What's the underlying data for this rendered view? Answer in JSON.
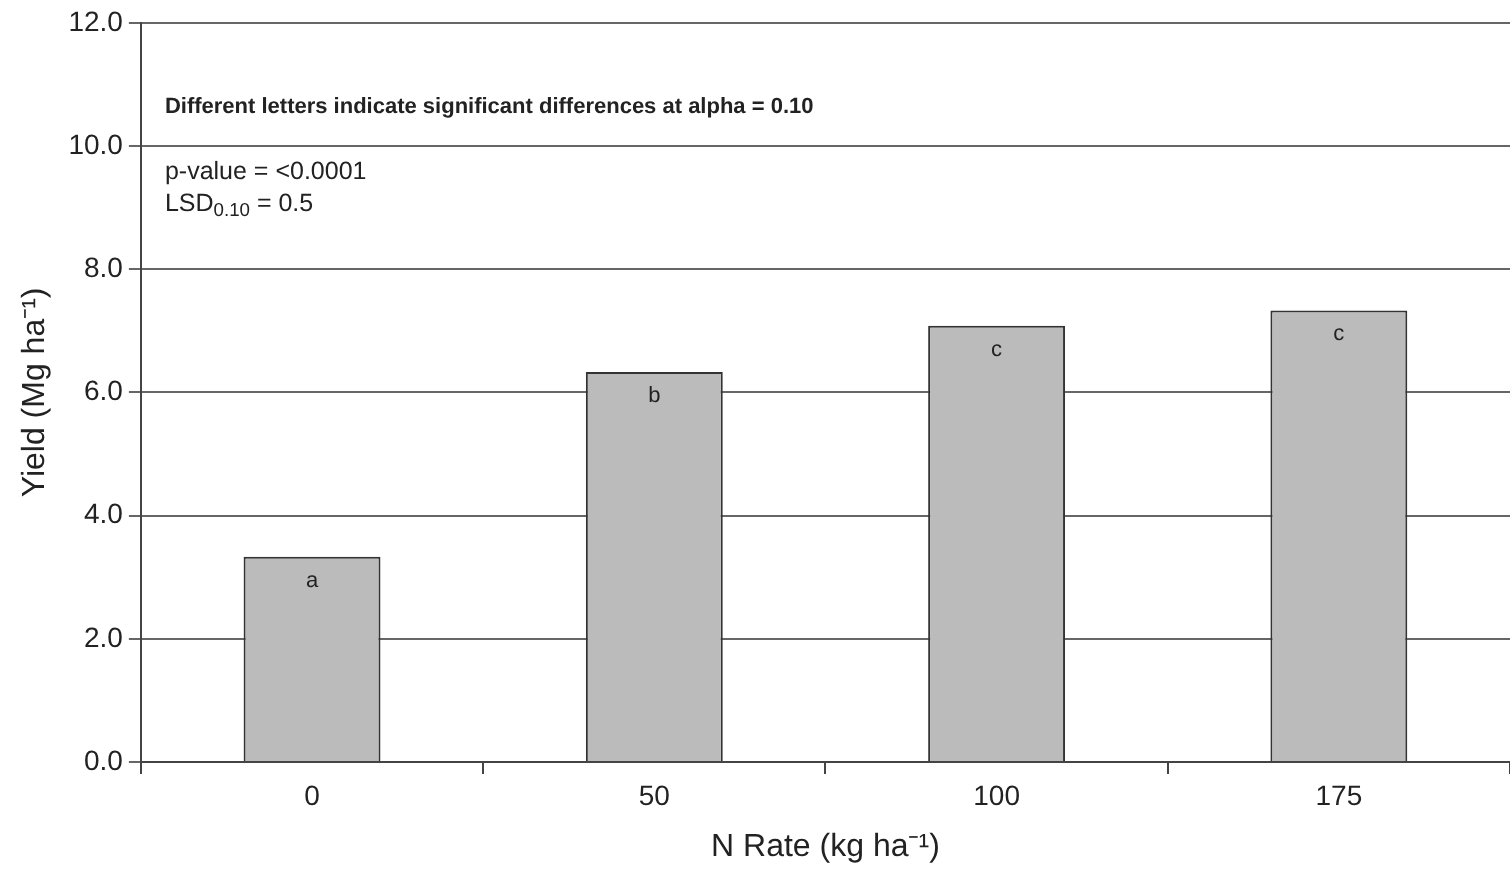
{
  "chart_data": {
    "type": "bar",
    "xlabel": "N Rate (kg ha⁻¹)",
    "ylabel": "Yield (Mg ha⁻¹)",
    "categories": [
      "0",
      "50",
      "100",
      "175"
    ],
    "values": [
      3.33,
      6.33,
      7.08,
      7.33
    ],
    "color": "#bbbbbb",
    "ylim": [
      0,
      12
    ],
    "yticks": [
      {
        "value": 0,
        "label": "0.0"
      },
      {
        "value": 2,
        "label": "2.0"
      },
      {
        "value": 4,
        "label": "4.0"
      },
      {
        "value": 6,
        "label": "6.0"
      },
      {
        "value": 8,
        "label": "8.0"
      },
      {
        "value": 10,
        "label": "10.0"
      },
      {
        "value": 12,
        "label": "12.0"
      }
    ],
    "grid": "y",
    "legend": false,
    "annotations": [
      "Different letters indicate significant differences at alpha = 0.10",
      "p-value = <0.0001",
      "LSD$_{0.10}$ = 0.5",
      {
        "text": "a",
        "x": "0",
        "y": 3.33
      },
      {
        "text": "b",
        "x": "50",
        "y": 6.33
      },
      {
        "text": "c",
        "x": "100",
        "y": 7.08
      },
      {
        "text": "c",
        "x": "175",
        "y": 7.33
      }
    ]
  }
}
